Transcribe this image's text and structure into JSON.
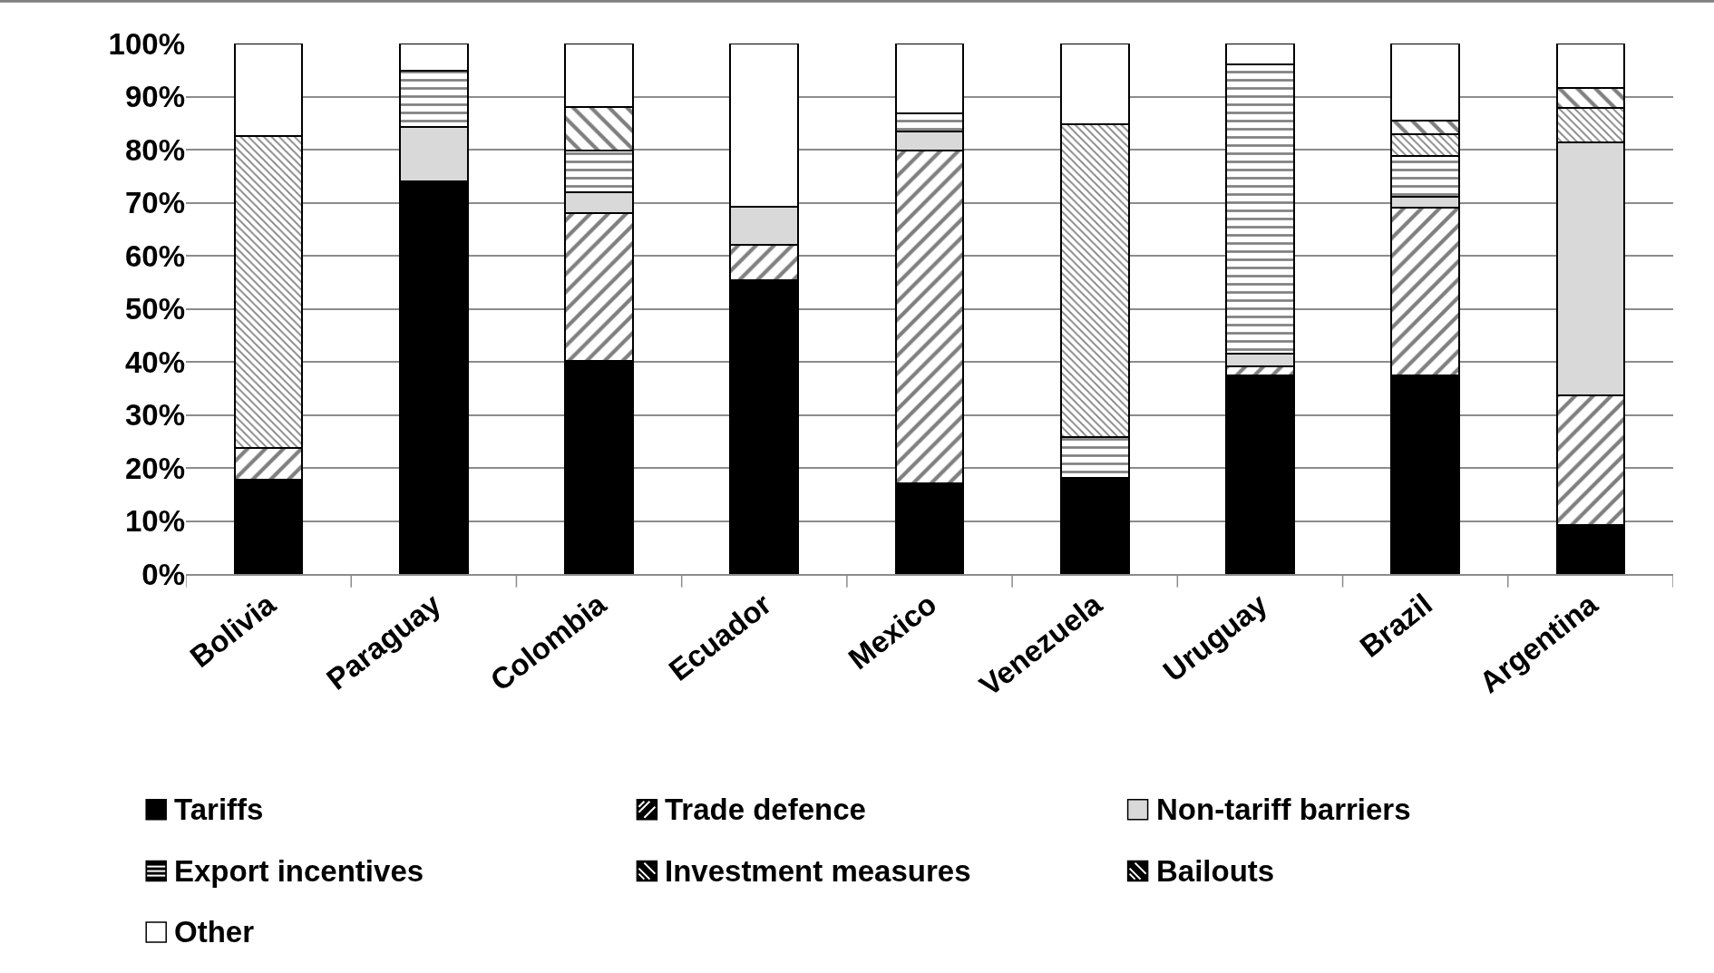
{
  "chart_data": {
    "type": "bar",
    "stacked": true,
    "categories": [
      "Bolivia",
      "Paraguay",
      "Colombia",
      "Ecuador",
      "Mexico",
      "Venezuela",
      "Uruguay",
      "Brazil",
      "Argentina"
    ],
    "series": [
      {
        "name": "Tariffs",
        "color": "#000000",
        "values": [
          17.7,
          74.0,
          40.1,
          55.4,
          17.1,
          18.2,
          37.4,
          37.4,
          9.3
        ]
      },
      {
        "name": "Trade defence",
        "color": "#000000",
        "values": [
          6.1,
          0,
          27.9,
          6.6,
          62.8,
          0,
          1.7,
          31.7,
          24.4
        ]
      },
      {
        "name": "Non-tariff barriers",
        "color": "#d9d9d9",
        "values": [
          0,
          10.2,
          4.0,
          7.3,
          3.6,
          0,
          2.4,
          2.0,
          47.7
        ]
      },
      {
        "name": "Export incentives",
        "color": "#000000",
        "values": [
          0,
          10.7,
          7.9,
          0,
          3.3,
          7.6,
          54.5,
          7.7,
          null
        ]
      },
      {
        "name": "Investment measures",
        "color": "#000000",
        "values": [
          58.7,
          0,
          0,
          0,
          0,
          59.0,
          0,
          4.1,
          6.5
        ]
      },
      {
        "name": "Bailouts",
        "color": "#000000",
        "values": [
          0,
          0,
          8.1,
          0,
          0,
          0,
          0,
          2.6,
          3.8
        ]
      },
      {
        "name": "Other",
        "color": "#ffffff",
        "values": [
          17.5,
          5.1,
          12.0,
          30.7,
          13.2,
          15.2,
          4.0,
          14.5,
          8.3
        ]
      }
    ],
    "ylim": [
      0,
      100
    ],
    "yticks": [
      {
        "value": 0,
        "label": "0%"
      },
      {
        "value": 10,
        "label": "10%"
      },
      {
        "value": 20,
        "label": "20%"
      },
      {
        "value": 30,
        "label": "30%"
      },
      {
        "value": 40,
        "label": "40%"
      },
      {
        "value": 50,
        "label": "50%"
      },
      {
        "value": 60,
        "label": "60%"
      },
      {
        "value": 70,
        "label": "70%"
      },
      {
        "value": 80,
        "label": "80%"
      },
      {
        "value": 90,
        "label": "90%"
      },
      {
        "value": 100,
        "label": "100%"
      }
    ],
    "grid": "y",
    "legend": "bottom"
  }
}
